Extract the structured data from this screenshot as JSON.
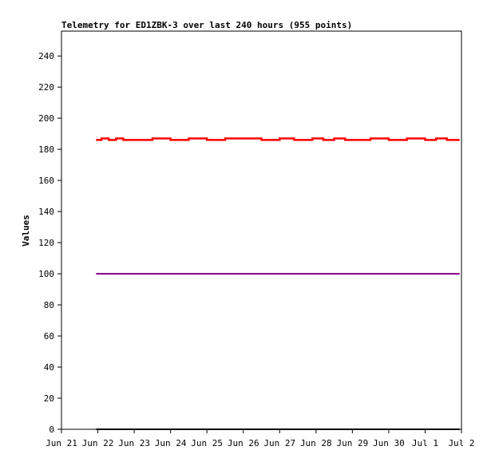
{
  "chart_data": {
    "type": "line",
    "title": "Telemetry for ED1ZBK-3 over last 240 hours (955 points)",
    "xlabel": "",
    "ylabel": "Values",
    "x_ticks": [
      "Jun 21",
      "Jun 22",
      "Jun 23",
      "Jun 24",
      "Jun 25",
      "Jun 26",
      "Jun 27",
      "Jun 28",
      "Jun 29",
      "Jun 30",
      "Jul 1",
      "Jul 2"
    ],
    "y_ticks": [
      0,
      20,
      40,
      60,
      80,
      100,
      120,
      140,
      160,
      180,
      200,
      220,
      240
    ],
    "ylim": [
      0,
      256
    ],
    "xlim_days_from_jun21": [
      0,
      11
    ],
    "grid": false,
    "legend": "none",
    "series": [
      {
        "color": "#ff0000",
        "x_days_from_jun21": [
          0.95,
          1.1,
          1.3,
          1.5,
          1.7,
          2.5,
          3.0,
          3.5,
          4.0,
          4.5,
          5.0,
          5.5,
          6.0,
          6.4,
          6.9,
          7.2,
          7.5,
          7.8,
          8.2,
          8.5,
          9.0,
          9.5,
          10.0,
          10.3,
          10.6,
          10.95
        ],
        "values": [
          186,
          187,
          186,
          187,
          186,
          187,
          186,
          187,
          186,
          187,
          187,
          186,
          187,
          186,
          187,
          186,
          187,
          186,
          186,
          187,
          186,
          187,
          186,
          187,
          186,
          186
        ]
      },
      {
        "color": "#800080",
        "x_days_from_jun21": [
          0.95,
          10.95
        ],
        "values": [
          100,
          100
        ]
      },
      {
        "color": "#000000",
        "x_days_from_jun21": [
          0.95,
          10.95
        ],
        "values": [
          0,
          0
        ]
      }
    ]
  }
}
